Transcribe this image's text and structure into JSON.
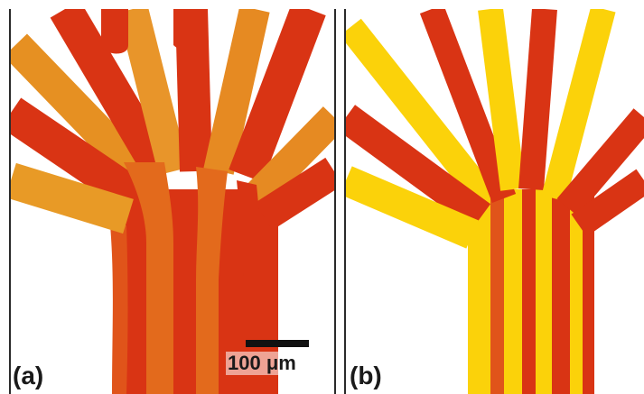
{
  "panels": {
    "a": {
      "label": "(a)"
    },
    "b": {
      "label": "(b)"
    }
  },
  "scale_bar": {
    "text": "100 μm"
  },
  "colors": {
    "red": "#d92a12",
    "orange": "#e8881e",
    "yellow": "#fbd20a",
    "background": "#ffffff"
  }
}
